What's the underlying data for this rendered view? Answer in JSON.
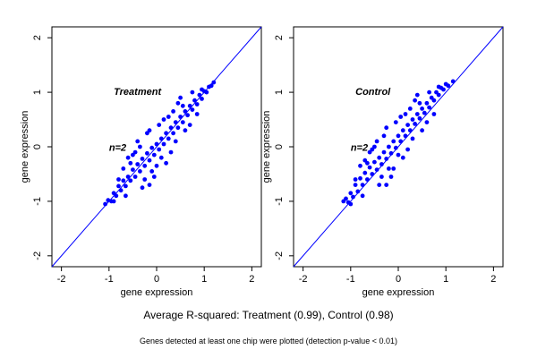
{
  "chart_data": [
    {
      "type": "scatter",
      "title": "Treatment",
      "annotation": "n=2",
      "xlabel": "gene expression",
      "ylabel": "gene expression",
      "xlim": [
        -2.2,
        2.2
      ],
      "ylim": [
        -2.2,
        2.2
      ],
      "xticks": [
        -2,
        -1,
        0,
        1,
        2
      ],
      "yticks": [
        -2,
        -1,
        0,
        1,
        2
      ],
      "x_tick_labels": [
        "-2",
        "-1",
        "0",
        "1",
        "2"
      ],
      "y_tick_labels": [
        "-2",
        "-1",
        "0",
        "1",
        "2"
      ],
      "reference_line": {
        "slope": 1,
        "intercept": 0,
        "color": "#0000ff"
      },
      "point_color": "#0000ff",
      "grid": false,
      "series": [
        {
          "points": [
            [
              -1.08,
              -1.05
            ],
            [
              -1.02,
              -0.98
            ],
            [
              -0.95,
              -1.0
            ],
            [
              -0.9,
              -0.85
            ],
            [
              -0.85,
              -0.9
            ],
            [
              -0.8,
              -0.72
            ],
            [
              -0.75,
              -0.8
            ],
            [
              -0.7,
              -0.62
            ],
            [
              -0.65,
              -0.72
            ],
            [
              -0.6,
              -0.55
            ],
            [
              -0.55,
              -0.62
            ],
            [
              -0.5,
              -0.42
            ],
            [
              -0.45,
              -0.55
            ],
            [
              -0.4,
              -0.32
            ],
            [
              -0.35,
              -0.45
            ],
            [
              -0.3,
              -0.22
            ],
            [
              -0.25,
              -0.35
            ],
            [
              -0.2,
              -0.12
            ],
            [
              -0.15,
              -0.25
            ],
            [
              -0.1,
              -0.02
            ],
            [
              -0.05,
              -0.15
            ],
            [
              0.0,
              0.05
            ],
            [
              0.05,
              -0.05
            ],
            [
              0.1,
              0.15
            ],
            [
              0.15,
              0.05
            ],
            [
              0.2,
              0.25
            ],
            [
              0.25,
              0.15
            ],
            [
              0.3,
              0.35
            ],
            [
              0.35,
              0.25
            ],
            [
              0.4,
              0.45
            ],
            [
              0.45,
              0.35
            ],
            [
              0.5,
              0.55
            ],
            [
              0.55,
              0.45
            ],
            [
              0.6,
              0.65
            ],
            [
              0.65,
              0.58
            ],
            [
              0.7,
              0.75
            ],
            [
              0.75,
              0.68
            ],
            [
              0.8,
              0.85
            ],
            [
              0.85,
              0.78
            ],
            [
              0.9,
              0.95
            ],
            [
              0.95,
              0.88
            ],
            [
              1.0,
              1.02
            ],
            [
              1.05,
              1.0
            ],
            [
              1.1,
              1.1
            ],
            [
              1.15,
              1.12
            ],
            [
              1.2,
              1.18
            ],
            [
              -0.2,
              0.25
            ],
            [
              0.0,
              -0.35
            ],
            [
              0.3,
              -0.1
            ],
            [
              -0.4,
              0.1
            ],
            [
              0.5,
              0.9
            ],
            [
              -0.6,
              -0.2
            ],
            [
              0.15,
              0.5
            ],
            [
              -0.05,
              -0.55
            ],
            [
              0.7,
              0.4
            ],
            [
              -0.3,
              -0.75
            ],
            [
              0.45,
              0.8
            ],
            [
              -0.15,
              0.3
            ],
            [
              0.2,
              -0.3
            ],
            [
              -0.7,
              -0.4
            ],
            [
              0.6,
              0.3
            ],
            [
              -0.45,
              -0.1
            ],
            [
              0.35,
              0.65
            ],
            [
              -0.25,
              -0.6
            ],
            [
              0.05,
              0.4
            ],
            [
              -0.1,
              -0.45
            ],
            [
              0.25,
              0.55
            ],
            [
              -0.5,
              -0.15
            ],
            [
              0.4,
              0.1
            ],
            [
              -0.35,
              0.0
            ],
            [
              -0.8,
              -0.6
            ],
            [
              0.85,
              0.6
            ],
            [
              -0.9,
              -1.0
            ],
            [
              0.95,
              1.05
            ],
            [
              -0.15,
              -0.7
            ],
            [
              -0.55,
              -0.3
            ],
            [
              0.1,
              -0.2
            ],
            [
              0.55,
              0.75
            ],
            [
              -0.65,
              -0.9
            ],
            [
              0.75,
              1.0
            ]
          ]
        }
      ]
    },
    {
      "type": "scatter",
      "title": "Control",
      "annotation": "n=2",
      "xlabel": "gene expression",
      "ylabel": "gene expression",
      "xlim": [
        -2.2,
        2.2
      ],
      "ylim": [
        -2.2,
        2.2
      ],
      "xticks": [
        -2,
        -1,
        0,
        1,
        2
      ],
      "yticks": [
        -2,
        -1,
        0,
        1,
        2
      ],
      "x_tick_labels": [
        "-2",
        "-1",
        "0",
        "1",
        "2"
      ],
      "y_tick_labels": [
        "-2",
        "-1",
        "0",
        "1",
        "2"
      ],
      "reference_line": {
        "slope": 1,
        "intercept": 0,
        "color": "#0000ff"
      },
      "point_color": "#0000ff",
      "grid": false,
      "series": [
        {
          "points": [
            [
              -1.15,
              -1.0
            ],
            [
              -1.1,
              -0.95
            ],
            [
              -1.05,
              -1.02
            ],
            [
              -1.0,
              -0.85
            ],
            [
              -0.95,
              -0.92
            ],
            [
              -0.9,
              -0.7
            ],
            [
              -0.85,
              -0.82
            ],
            [
              -0.8,
              -0.58
            ],
            [
              -0.75,
              -0.7
            ],
            [
              -0.7,
              -0.48
            ],
            [
              -0.65,
              -0.6
            ],
            [
              -0.6,
              -0.38
            ],
            [
              -0.55,
              -0.5
            ],
            [
              -0.5,
              -0.28
            ],
            [
              -0.45,
              -0.42
            ],
            [
              -0.4,
              -0.2
            ],
            [
              -0.35,
              -0.32
            ],
            [
              -0.3,
              -0.1
            ],
            [
              -0.25,
              -0.22
            ],
            [
              -0.2,
              0.0
            ],
            [
              -0.15,
              -0.12
            ],
            [
              -0.1,
              0.1
            ],
            [
              -0.05,
              -0.02
            ],
            [
              0.0,
              0.2
            ],
            [
              0.05,
              0.1
            ],
            [
              0.1,
              0.3
            ],
            [
              0.15,
              0.2
            ],
            [
              0.2,
              0.4
            ],
            [
              0.25,
              0.3
            ],
            [
              0.3,
              0.5
            ],
            [
              0.35,
              0.42
            ],
            [
              0.4,
              0.6
            ],
            [
              0.45,
              0.52
            ],
            [
              0.5,
              0.7
            ],
            [
              0.55,
              0.62
            ],
            [
              0.6,
              0.8
            ],
            [
              0.65,
              0.72
            ],
            [
              0.7,
              0.9
            ],
            [
              0.75,
              0.85
            ],
            [
              0.8,
              1.0
            ],
            [
              0.85,
              0.95
            ],
            [
              0.9,
              1.08
            ],
            [
              0.95,
              1.05
            ],
            [
              1.0,
              1.15
            ],
            [
              1.05,
              1.12
            ],
            [
              1.15,
              1.2
            ],
            [
              -0.3,
              0.2
            ],
            [
              -0.1,
              -0.4
            ],
            [
              0.2,
              -0.05
            ],
            [
              -0.5,
              0.0
            ],
            [
              0.4,
              0.95
            ],
            [
              -0.7,
              -0.25
            ],
            [
              0.05,
              0.55
            ],
            [
              -0.15,
              -0.55
            ],
            [
              0.6,
              0.45
            ],
            [
              -0.4,
              -0.7
            ],
            [
              0.35,
              0.85
            ],
            [
              -0.25,
              0.35
            ],
            [
              0.1,
              -0.2
            ],
            [
              -0.8,
              -0.35
            ],
            [
              0.5,
              0.3
            ],
            [
              -0.55,
              -0.05
            ],
            [
              0.25,
              0.7
            ],
            [
              -0.35,
              -0.55
            ],
            [
              -0.05,
              0.45
            ],
            [
              -0.2,
              -0.4
            ],
            [
              0.15,
              0.6
            ],
            [
              -0.6,
              -0.1
            ],
            [
              0.3,
              0.15
            ],
            [
              -0.45,
              0.1
            ],
            [
              -0.9,
              -0.6
            ],
            [
              0.75,
              0.6
            ],
            [
              -1.0,
              -1.05
            ],
            [
              0.85,
              1.1
            ],
            [
              -0.25,
              -0.7
            ],
            [
              -0.65,
              -0.3
            ],
            [
              0.0,
              -0.15
            ],
            [
              0.45,
              0.8
            ],
            [
              -0.75,
              -0.9
            ],
            [
              0.65,
              1.0
            ]
          ]
        }
      ]
    }
  ],
  "caption": "Average R-squared: Treatment (0.99), Control (0.98)",
  "footnote": "Genes detected at least one chip were plotted (detection p-value < 0.01)"
}
